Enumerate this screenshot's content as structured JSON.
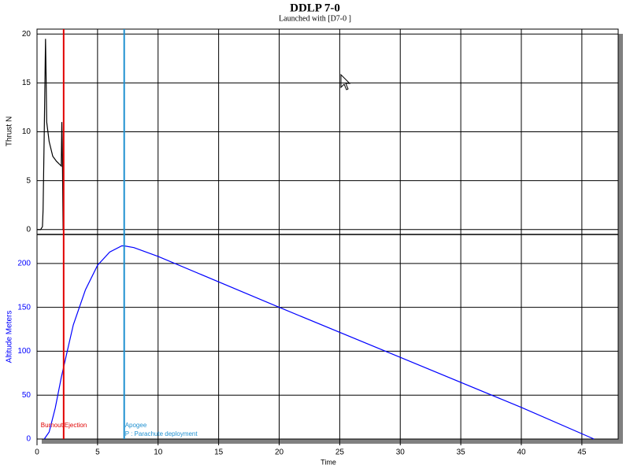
{
  "chart_data": [
    {
      "type": "line",
      "title": "DDLP 7-0",
      "subtitle": "Launched with [D7-0   ]",
      "ylabel": "Thrust N",
      "x": [
        0,
        0.3,
        0.45,
        0.5,
        0.6,
        0.7,
        0.75,
        0.8,
        1.0,
        1.3,
        1.6,
        2.0,
        2.05,
        2.1,
        2.15,
        2.2
      ],
      "values": [
        0,
        0,
        0.3,
        2,
        10,
        19.5,
        16,
        11,
        9,
        7.5,
        7,
        6.5,
        11,
        7,
        0,
        0
      ],
      "color": "#000000",
      "xlim": [
        0,
        48
      ],
      "ylim": [
        -0.5,
        20.5
      ],
      "yticks": [
        0,
        5,
        10,
        15,
        20
      ],
      "grid": true
    },
    {
      "type": "line",
      "ylabel": "Altitude Meters",
      "xlabel": "Time",
      "x": [
        0.6,
        1,
        1.5,
        2,
        2.5,
        3,
        4,
        5,
        6,
        7,
        7.2,
        8,
        10,
        20,
        30,
        40,
        46
      ],
      "values": [
        0,
        8,
        35,
        70,
        100,
        130,
        170,
        198,
        213,
        220,
        220,
        218,
        208,
        150,
        93,
        36,
        0
      ],
      "color": "#0000ff",
      "xlim": [
        0,
        48
      ],
      "ylim": [
        0,
        233
      ],
      "yticks": [
        0,
        50,
        100,
        150,
        200
      ],
      "xticks": [
        0,
        5,
        10,
        15,
        20,
        25,
        30,
        35,
        40,
        45
      ],
      "grid": true,
      "markers": [
        {
          "x": 2.2,
          "color": "#e00000",
          "labels": [
            "Burnout",
            "Ejection"
          ]
        },
        {
          "x": 7.2,
          "color": "#1e90d0",
          "labels": [
            "Apogee",
            "P : Parachute deployment"
          ]
        }
      ]
    }
  ]
}
